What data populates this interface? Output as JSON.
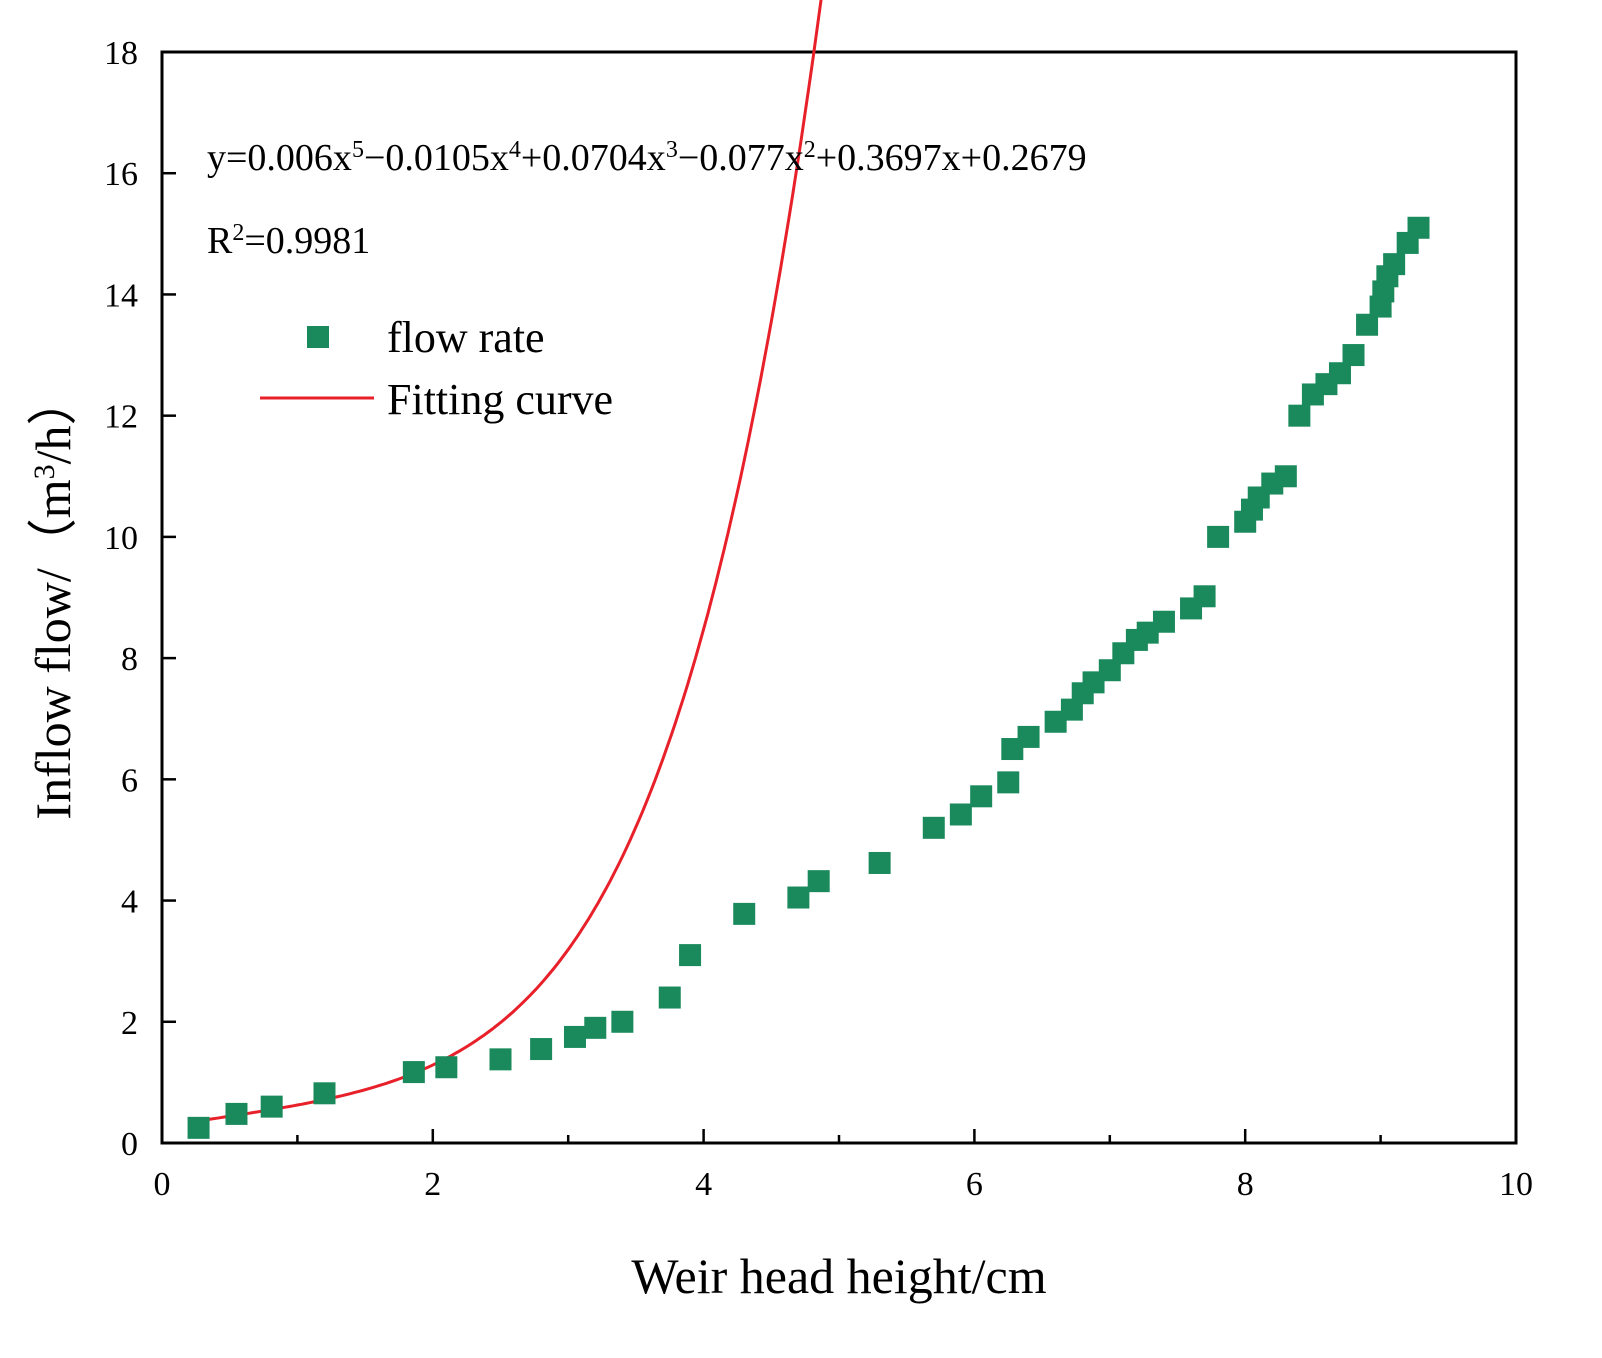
{
  "chart_data": {
    "type": "scatter",
    "xlabel": "Weir head height/cm",
    "ylabel_main": "Inflow flow/（m",
    "ylabel_sup": "3",
    "ylabel_end": "/h）",
    "xlim": [
      0,
      10
    ],
    "ylim": [
      0,
      18
    ],
    "x_ticks": [
      0,
      2,
      4,
      6,
      8,
      10
    ],
    "y_ticks": [
      0,
      2,
      4,
      6,
      8,
      10,
      12,
      14,
      16,
      18
    ],
    "x_tick_labels": [
      "0",
      "2",
      "4",
      "6",
      "8",
      "10"
    ],
    "y_tick_labels": [
      "0",
      "2",
      "4",
      "6",
      "8",
      "10",
      "12",
      "14",
      "16",
      "18"
    ],
    "x_minor_step": 1,
    "grid": false,
    "legend_position": "upper-left",
    "equation": {
      "parts": [
        {
          "t": "y=0.006x",
          "sup": false
        },
        {
          "t": "5",
          "sup": true
        },
        {
          "t": "−0.0105x",
          "sup": false
        },
        {
          "t": "4",
          "sup": true
        },
        {
          "t": "+0.0704x",
          "sup": false
        },
        {
          "t": "3",
          "sup": true
        },
        {
          "t": "−0.077x",
          "sup": false
        },
        {
          "t": "2",
          "sup": true
        },
        {
          "t": "+0.3697x+0.2679",
          "sup": false
        }
      ]
    },
    "r_squared": {
      "parts": [
        {
          "t": "R",
          "sup": false
        },
        {
          "t": "2",
          "sup": true
        },
        {
          "t": "=0.9981",
          "sup": false
        }
      ]
    },
    "series": [
      {
        "name": "flow rate",
        "kind": "scatter",
        "marker": "square",
        "color": "#1a8a5c",
        "points": [
          [
            0.27,
            0.25
          ],
          [
            0.55,
            0.48
          ],
          [
            0.81,
            0.6
          ],
          [
            1.2,
            0.82
          ],
          [
            1.86,
            1.17
          ],
          [
            2.1,
            1.25
          ],
          [
            2.5,
            1.38
          ],
          [
            2.8,
            1.55
          ],
          [
            3.05,
            1.75
          ],
          [
            3.2,
            1.9
          ],
          [
            3.4,
            2.0
          ],
          [
            3.75,
            2.4
          ],
          [
            3.9,
            3.1
          ],
          [
            4.3,
            3.78
          ],
          [
            4.7,
            4.05
          ],
          [
            4.85,
            4.32
          ],
          [
            5.3,
            4.62
          ],
          [
            5.7,
            5.2
          ],
          [
            5.9,
            5.42
          ],
          [
            6.05,
            5.72
          ],
          [
            6.25,
            5.95
          ],
          [
            6.28,
            6.5
          ],
          [
            6.4,
            6.7
          ],
          [
            6.6,
            6.95
          ],
          [
            6.72,
            7.15
          ],
          [
            6.8,
            7.42
          ],
          [
            6.88,
            7.6
          ],
          [
            7.0,
            7.8
          ],
          [
            7.1,
            8.08
          ],
          [
            7.2,
            8.3
          ],
          [
            7.28,
            8.42
          ],
          [
            7.4,
            8.6
          ],
          [
            7.6,
            8.82
          ],
          [
            7.7,
            9.02
          ],
          [
            7.8,
            10.0
          ],
          [
            8.0,
            10.25
          ],
          [
            8.05,
            10.45
          ],
          [
            8.1,
            10.65
          ],
          [
            8.2,
            10.88
          ],
          [
            8.3,
            11.0
          ],
          [
            8.4,
            12.0
          ],
          [
            8.5,
            12.35
          ],
          [
            8.6,
            12.52
          ],
          [
            8.7,
            12.7
          ],
          [
            8.8,
            13.0
          ],
          [
            8.9,
            13.5
          ],
          [
            9.0,
            13.8
          ],
          [
            9.02,
            14.05
          ],
          [
            9.05,
            14.3
          ],
          [
            9.1,
            14.5
          ],
          [
            9.2,
            14.85
          ],
          [
            9.28,
            15.1
          ]
        ]
      },
      {
        "name": "Fitting curve",
        "kind": "line",
        "color": "#e8202a",
        "coefficients": [
          0.2679,
          0.3697,
          -0.077,
          0.0704,
          -0.0105,
          0.006
        ],
        "x_range": [
          0.25,
          9.25
        ]
      }
    ]
  }
}
